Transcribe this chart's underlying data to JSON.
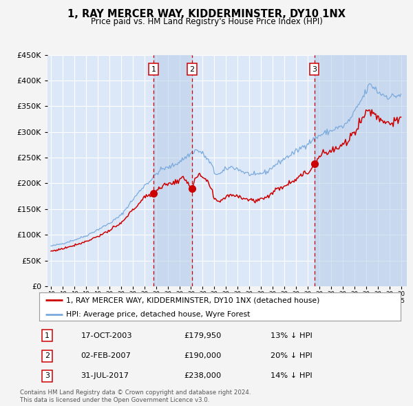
{
  "title": "1, RAY MERCER WAY, KIDDERMINSTER, DY10 1NX",
  "subtitle": "Price paid vs. HM Land Registry's House Price Index (HPI)",
  "legend_line1": "1, RAY MERCER WAY, KIDDERMINSTER, DY10 1NX (detached house)",
  "legend_line2": "HPI: Average price, detached house, Wyre Forest",
  "footer1": "Contains HM Land Registry data © Crown copyright and database right 2024.",
  "footer2": "This data is licensed under the Open Government Licence v3.0.",
  "transactions": [
    {
      "num": 1,
      "date": "17-OCT-2003",
      "price": 179950,
      "hpi_diff": "13% ↓ HPI"
    },
    {
      "num": 2,
      "date": "02-FEB-2007",
      "price": 190000,
      "hpi_diff": "20% ↓ HPI"
    },
    {
      "num": 3,
      "date": "31-JUL-2017",
      "price": 238000,
      "hpi_diff": "14% ↓ HPI"
    }
  ],
  "transaction_dates_decimal": [
    2003.79,
    2007.09,
    2017.58
  ],
  "transaction_prices": [
    179950,
    190000,
    238000
  ],
  "ylim": [
    0,
    450000
  ],
  "yticks": [
    0,
    50000,
    100000,
    150000,
    200000,
    250000,
    300000,
    350000,
    400000,
    450000
  ],
  "fig_bg_color": "#f4f4f4",
  "plot_bg_color": "#dce8f8",
  "grid_color": "#ffffff",
  "red_line_color": "#cc0000",
  "blue_line_color": "#7aaadd",
  "dashed_color": "#cc0000",
  "marker_color": "#cc0000",
  "shading_color": "#b8cce8",
  "box_color": "#cc0000",
  "xmin": 1994.7,
  "xmax": 2025.5
}
